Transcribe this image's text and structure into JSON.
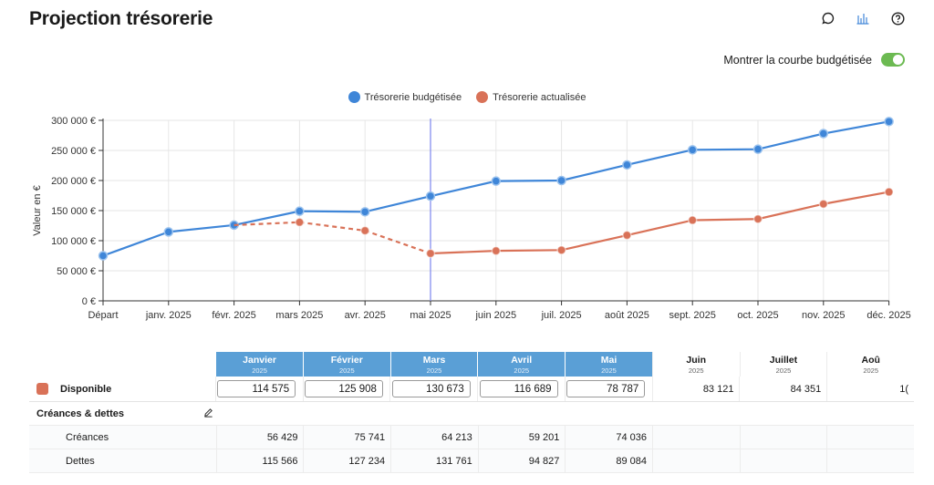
{
  "page": {
    "title": "Projection trésorerie"
  },
  "top_icons": [
    {
      "name": "comment-icon"
    },
    {
      "name": "bar-chart-icon"
    },
    {
      "name": "help-icon"
    }
  ],
  "toggle": {
    "label": "Montrer la courbe budgétisée",
    "on": true,
    "color": "#6cba52"
  },
  "chart_data": {
    "type": "line",
    "ylabel": "Valeur en €",
    "ylim": [
      0,
      300000
    ],
    "yticks": [
      "0 €",
      "50 000 €",
      "100 000 €",
      "150 000 €",
      "200 000 €",
      "250 000 €",
      "300 000 €"
    ],
    "categories": [
      "Départ",
      "janv. 2025",
      "févr. 2025",
      "mars 2025",
      "avr. 2025",
      "mai 2025",
      "juin 2025",
      "juil. 2025",
      "août 2025",
      "sept. 2025",
      "oct. 2025",
      "nov. 2025",
      "déc. 2025"
    ],
    "current_index": 5,
    "grid": true,
    "legend_position": "top-center",
    "series": [
      {
        "name": "Trésorerie budgétisée",
        "color": "#3f86d8",
        "values": [
          75000,
          114575,
          125908,
          149000,
          148000,
          174000,
          199000,
          200000,
          226000,
          251000,
          252000,
          278000,
          298000
        ]
      },
      {
        "name": "Trésorerie actualisée",
        "color": "#d97258",
        "values": [
          null,
          null,
          125908,
          130673,
          116689,
          78787,
          83121,
          84351,
          109000,
          134000,
          136000,
          161000,
          181000
        ],
        "dashed_until_index": 5
      }
    ]
  },
  "table": {
    "months": [
      {
        "name": "Janvier",
        "year": "2025",
        "highlight": true
      },
      {
        "name": "Février",
        "year": "2025",
        "highlight": true
      },
      {
        "name": "Mars",
        "year": "2025",
        "highlight": true
      },
      {
        "name": "Avril",
        "year": "2025",
        "highlight": true
      },
      {
        "name": "Mai",
        "year": "2025",
        "highlight": true
      },
      {
        "name": "Juin",
        "year": "2025",
        "highlight": false
      },
      {
        "name": "Juillet",
        "year": "2025",
        "highlight": false
      },
      {
        "name": "Aoû",
        "year": "2025",
        "highlight": false
      }
    ],
    "disponible": {
      "label": "Disponible",
      "inputs": [
        "114 575",
        "125 908",
        "130 673",
        "116 689",
        "78 787"
      ],
      "values": [
        "83 121",
        "84 351",
        "1("
      ]
    },
    "section": {
      "label": "Créances & dettes"
    },
    "rows": [
      {
        "label": "Créances",
        "values": [
          "56 429",
          "75 741",
          "64 213",
          "59 201",
          "74 036",
          "",
          "",
          ""
        ]
      },
      {
        "label": "Dettes",
        "values": [
          "115 566",
          "127 234",
          "131 761",
          "94 827",
          "89 084",
          "",
          "",
          ""
        ]
      }
    ]
  }
}
